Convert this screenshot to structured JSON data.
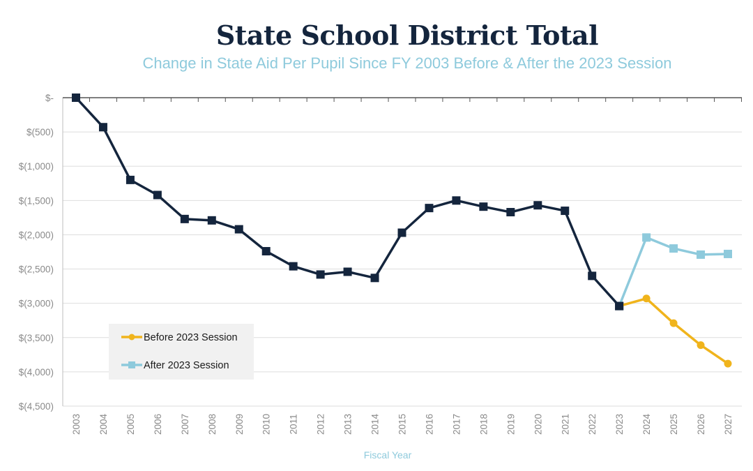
{
  "chart_data": {
    "type": "line",
    "title": "State School District Total",
    "subtitle": "Change in State Aid Per Pupil Since FY 2003 Before & After the 2023 Session",
    "xlabel": "Fiscal Year",
    "ylabel": "",
    "ylim": [
      -4500,
      0
    ],
    "yticks": [
      0,
      -500,
      -1000,
      -1500,
      -2000,
      -2500,
      -3000,
      -3500,
      -4000,
      -4500
    ],
    "ytick_labels": [
      "$-",
      "$(500)",
      "$(1,000)",
      "$(1,500)",
      "$(2,000)",
      "$(2,500)",
      "$(3,000)",
      "$(3,500)",
      "$(4,000)",
      "$(4,500)"
    ],
    "categories": [
      "2003",
      "2004",
      "2005",
      "2006",
      "2007",
      "2008",
      "2009",
      "2010",
      "2011",
      "2012",
      "2013",
      "2014",
      "2015",
      "2016",
      "2017",
      "2018",
      "2019",
      "2020",
      "2021",
      "2022",
      "2023",
      "2024",
      "2025",
      "2026",
      "2027"
    ],
    "grid": true,
    "legend_position": "bottom-left",
    "series": [
      {
        "name": "",
        "color": "#14253d",
        "marker": "square",
        "values": [
          0,
          -430,
          -1200,
          -1420,
          -1770,
          -1790,
          -1920,
          -2240,
          -2460,
          -2580,
          -2540,
          -2630,
          -1970,
          -1610,
          -1500,
          -1590,
          -1670,
          -1570,
          -1650,
          -2600,
          -3040,
          null,
          null,
          null,
          null
        ]
      },
      {
        "name": "Before 2023 Session",
        "color": "#f0b41c",
        "marker": "circle",
        "values": [
          null,
          null,
          null,
          null,
          null,
          null,
          null,
          null,
          null,
          null,
          null,
          null,
          null,
          null,
          null,
          null,
          null,
          null,
          null,
          null,
          -3040,
          -2930,
          -3290,
          -3610,
          -3880
        ]
      },
      {
        "name": "After 2023 Session",
        "color": "#8ecadc",
        "marker": "square",
        "values": [
          null,
          null,
          null,
          null,
          null,
          null,
          null,
          null,
          null,
          null,
          null,
          null,
          null,
          null,
          null,
          null,
          null,
          null,
          null,
          null,
          -3040,
          -2040,
          -2200,
          -2290,
          -2280
        ]
      }
    ]
  }
}
